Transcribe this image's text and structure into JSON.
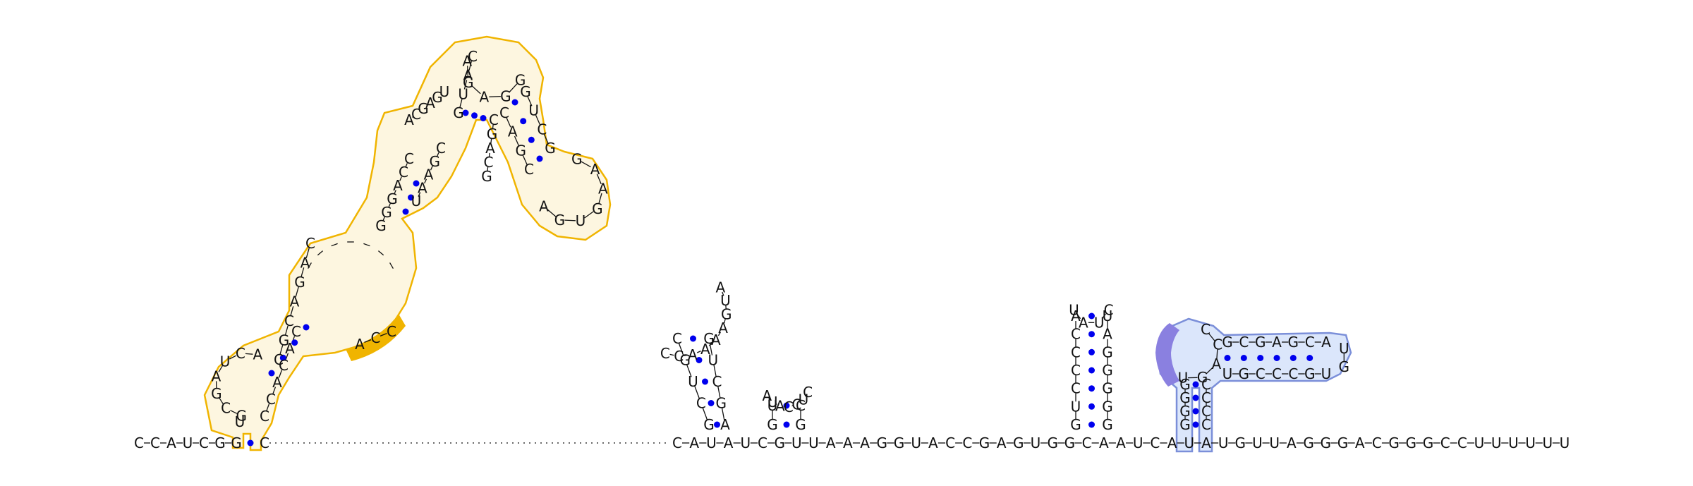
{
  "backbone": {
    "left_seq": "CCAUCGG",
    "left_paired": "C",
    "right_seq": "CAUAUCGUUAAAGGUACCGAGUGGCAAUCAUAUGUUAGGGACGGGCCUUUUUU"
  },
  "hairpin_a": {
    "left_strand": "GCUGC",
    "loop": "CCAAAAGUA",
    "right_strand": "AGCUG"
  },
  "hairpin_b": {
    "left_strand": "GU",
    "loop": "AUACCUC",
    "right_strand": "GC"
  },
  "hairpin_c": {
    "left_strand": "GUCCCCA",
    "loop": "UAUC",
    "right_strand": "GGGGGAU"
  },
  "yellow_domain": {
    "multiloop_left": "GCGAUCA",
    "stem2_left": "CGCAGAC",
    "stem2_right": "CCACAC",
    "stem3_left": "GGGACC",
    "internal_loop_left": "ACC",
    "stem3_right": "UAAGC",
    "stem4_left": "ACGAGU",
    "apical_left": "GUAC",
    "apical_loop": "AGAGG",
    "stem5_left": "GUCG",
    "stem5_loop": "GAAGUGA",
    "stem5_right": "CAGC",
    "stem4_right": "CGACG"
  },
  "blue_domain": {
    "stem_left": "GGGG",
    "loop_left": "UGACC",
    "hairpin_top": "GCGAGCA",
    "hairpin_loop": "UG",
    "hairpin_bottom": "UGCCCGU",
    "stem_right": "CCCC"
  },
  "colors": {
    "base_pair": "#0000ee",
    "yellow_outline": "#f0b400",
    "yellow_fill": "#fdf6e0",
    "yellow_highlight": "#f0b400",
    "blue_outline": "#7b8fd9",
    "blue_fill": "#dbe6fb",
    "blue_highlight": "#8a80e0"
  }
}
